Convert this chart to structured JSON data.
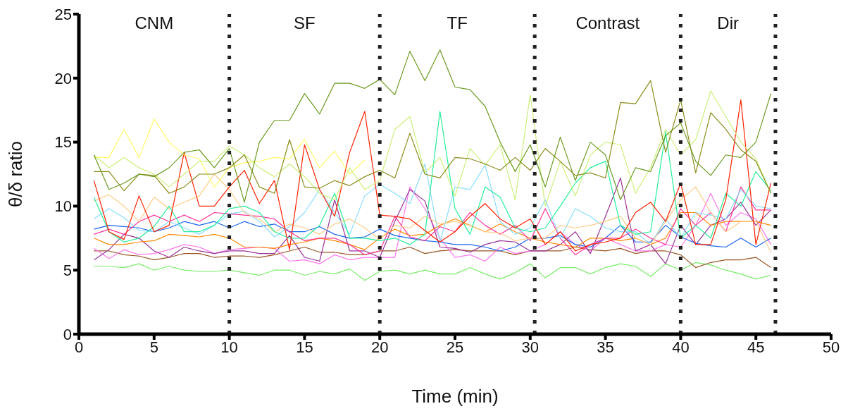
{
  "chart_data": {
    "type": "line",
    "xlabel": "Time (min)",
    "ylabel": "θ/δ ratio",
    "x": [
      1,
      2,
      3,
      4,
      5,
      6,
      7,
      8,
      9,
      10,
      11,
      12,
      13,
      14,
      15,
      16,
      17,
      18,
      19,
      20,
      21,
      22,
      23,
      24,
      25,
      26,
      27,
      28,
      29,
      30,
      31,
      32,
      33,
      34,
      35,
      36,
      37,
      38,
      39,
      40,
      41,
      42,
      43,
      44,
      45,
      46
    ],
    "xlim": [
      0,
      50
    ],
    "xticks": [
      0,
      5,
      10,
      15,
      20,
      25,
      30,
      35,
      40,
      45,
      50
    ],
    "ylim": [
      0,
      25
    ],
    "yticks": [
      0,
      5,
      10,
      15,
      20,
      25
    ],
    "grid": false,
    "legend": false,
    "marker": "none",
    "line_style": "solid",
    "ref_lines": [
      {
        "axis": "x",
        "value": 10,
        "color": "#222222",
        "line_style": "dotted"
      },
      {
        "axis": "x",
        "value": 20,
        "color": "#222222",
        "line_style": "dotted"
      },
      {
        "axis": "x",
        "value": 30.3,
        "color": "#222222",
        "line_style": "dotted"
      },
      {
        "axis": "x",
        "value": 40,
        "color": "#222222",
        "line_style": "dotted"
      },
      {
        "axis": "x",
        "value": 46.3,
        "color": "#222222",
        "line_style": "dotted"
      }
    ],
    "annotations": [
      "CNM",
      "SF",
      "TF",
      "Contrast",
      "Dir"
    ],
    "series": [
      {
        "color": "#77ee66",
        "values": [
          5.3,
          5.3,
          5.2,
          5.5,
          5,
          5.3,
          5,
          4.9,
          4.9,
          5,
          4.8,
          4.6,
          5,
          5,
          4.6,
          4.9,
          4.7,
          5.1,
          4.2,
          4.9,
          5,
          4.7,
          5,
          4.7,
          4.7,
          5.2,
          4.7,
          4.3,
          4.8,
          5.5,
          4.4,
          5.2,
          5.2,
          4.7,
          5.2,
          5.5,
          5.3,
          4.5,
          5.5,
          5,
          5.6,
          5.4,
          5,
          4.7,
          4.3,
          4.6
        ]
      },
      {
        "color": "#995522",
        "values": [
          6.5,
          6.5,
          6.2,
          6.1,
          5.8,
          6,
          6.3,
          6.3,
          6,
          6.1,
          6.1,
          6,
          6.2,
          6.5,
          6.8,
          6.4,
          6.4,
          6.2,
          6.2,
          6.5,
          6.5,
          6.8,
          6.3,
          6.5,
          6.6,
          6.5,
          6.5,
          6.5,
          6.2,
          6.5,
          6.5,
          6.5,
          6.8,
          6.6,
          6.5,
          6.7,
          6.3,
          6.5,
          6.5,
          6.2,
          5.2,
          5.6,
          5.8,
          5.8,
          6,
          5.2
        ]
      },
      {
        "color": "#ff77ee",
        "values": [
          6.7,
          5.9,
          6.6,
          6.2,
          6.3,
          6.6,
          7,
          6.8,
          6.3,
          6.6,
          6.7,
          6.8,
          6.7,
          5.7,
          5.8,
          5.5,
          6.2,
          5.8,
          6,
          6,
          6,
          11.5,
          9.8,
          7.5,
          6,
          6.2,
          5.7,
          6.8,
          6.3,
          6.5,
          7,
          8,
          7,
          6.5,
          7.5,
          7,
          6.5,
          6.5,
          7,
          6.8,
          8.5,
          11,
          8.5,
          9.5,
          9,
          7
        ]
      },
      {
        "color": "#993399",
        "values": [
          5.8,
          6.6,
          7.8,
          7.5,
          6.5,
          6,
          6.8,
          6.5,
          6.3,
          6.5,
          6.5,
          6.3,
          6.3,
          7.7,
          6,
          5.7,
          10.5,
          6.5,
          6.5,
          6,
          8.8,
          11.3,
          10.4,
          6.8,
          6.7,
          6.4,
          7,
          7.3,
          7.2,
          6.5,
          6.5,
          7,
          8,
          6.3,
          9.2,
          12.2,
          6.5,
          7,
          5.5,
          8.5,
          7,
          8.5,
          9,
          10.3,
          8.5,
          9.7
        ]
      },
      {
        "color": "#ff8800",
        "values": [
          7.5,
          7,
          7,
          7.2,
          7.3,
          7.8,
          7.7,
          7.6,
          7.8,
          7.5,
          6.8,
          6.8,
          6.7,
          7,
          7.2,
          7.5,
          7.3,
          7,
          6.6,
          7.5,
          8.2,
          7.7,
          7.8,
          8.5,
          9,
          8.5,
          8,
          8.6,
          8,
          7.5,
          7.2,
          7,
          6.8,
          7.5,
          7.5,
          7.3,
          7.5,
          7,
          7.5,
          9.5,
          9.5,
          8.5,
          8.8,
          8.8,
          8.8,
          8.5
        ]
      },
      {
        "color": "#1a66ee",
        "values": [
          8.2,
          8.5,
          8.4,
          8.3,
          8,
          8.3,
          8.8,
          8.5,
          8.8,
          8.3,
          8.8,
          8.4,
          8.6,
          8,
          8,
          8.4,
          7.8,
          7.5,
          7.6,
          8.2,
          7.7,
          7.5,
          7.3,
          7.2,
          7,
          7,
          6.8,
          6.5,
          6.8,
          7.5,
          7.5,
          7.7,
          7,
          6.8,
          7.5,
          8.5,
          7.2,
          7.2,
          8.5,
          7.6,
          7.1,
          6.9,
          6.8,
          7.5,
          6.8,
          7.5
        ]
      },
      {
        "color": "#ff3399",
        "values": [
          7.8,
          8.2,
          7.8,
          8.8,
          9.3,
          8.8,
          9.3,
          8.8,
          9.5,
          9.4,
          9.3,
          9.2,
          9,
          8,
          7.3,
          7.5,
          7.5,
          7,
          6.2,
          6.5,
          9.2,
          7.6,
          7.3,
          8.4,
          8,
          9.5,
          8.5,
          7.8,
          8.5,
          7.3,
          9.8,
          7.5,
          6.2,
          7,
          7.5,
          7.5,
          8.2,
          7.5,
          7,
          9.8,
          8.5,
          9.5,
          8,
          11.5,
          9.7,
          9.7
        ]
      },
      {
        "color": "#88ddff",
        "values": [
          9,
          9.8,
          9.1,
          8.1,
          8,
          8.8,
          8.3,
          7.8,
          8.5,
          9.4,
          9.6,
          8.8,
          7.6,
          8.4,
          9.5,
          11.3,
          9.5,
          7.8,
          10.8,
          11.7,
          11,
          10.2,
          13.3,
          7.2,
          11.5,
          11.3,
          13.2,
          8.8,
          7.8,
          8.3,
          10.5,
          7.5,
          9.8,
          9.2,
          8.3,
          8,
          8,
          7,
          9,
          7.5,
          9.5,
          9.3,
          9,
          11.3,
          10,
          9.8
        ]
      },
      {
        "color": "#ffcc88",
        "values": [
          10.4,
          10.9,
          10,
          8.8,
          10.7,
          9.8,
          10.3,
          10.8,
          12.5,
          11.3,
          9.5,
          9,
          8,
          8.6,
          8.3,
          7.8,
          8.6,
          9,
          8.3,
          7.4,
          8.5,
          8.3,
          9.2,
          8.6,
          8.8,
          8.5,
          8,
          7.9,
          7.3,
          7.5,
          7.5,
          8.5,
          8.3,
          8.5,
          8.8,
          9.2,
          7.5,
          7,
          8.8,
          10.5,
          11.5,
          9.5,
          8,
          8.8,
          8.8,
          6.4
        ]
      },
      {
        "color": "#22ee99",
        "values": [
          10.7,
          8,
          7.2,
          7.5,
          8.4,
          10,
          8,
          8,
          8.5,
          9.8,
          10,
          9.5,
          8,
          7.5,
          7.5,
          8.5,
          11,
          7.5,
          7.5,
          7.3,
          7.5,
          7,
          7.8,
          17.4,
          9.8,
          7.8,
          11.5,
          10.7,
          8.3,
          8,
          8.3,
          10,
          11.8,
          13,
          13.5,
          8.5,
          7.8,
          8,
          15.8,
          7.5,
          8.5,
          7.5,
          11,
          10,
          12.7,
          11.2
        ]
      },
      {
        "color": "#ff2200",
        "values": [
          12,
          8,
          7.4,
          10.8,
          8,
          8.5,
          14.2,
          10,
          10,
          11.5,
          12.8,
          10.2,
          12,
          6.6,
          14.8,
          11.3,
          9.2,
          14.2,
          17.4,
          9.3,
          9.2,
          9,
          8.1,
          7.2,
          8,
          9.2,
          10.2,
          9,
          8.3,
          9,
          7,
          8,
          6.5,
          7,
          7.2,
          7.5,
          9.5,
          10.3,
          8.8,
          11.8,
          7,
          7,
          10.5,
          18.3,
          7,
          11.8
        ]
      },
      {
        "color": "#ffff66",
        "values": [
          13.8,
          13.8,
          16,
          13.8,
          16.8,
          15,
          14,
          13.7,
          11.5,
          13,
          13.4,
          13.5,
          13.8,
          13.7,
          15.2,
          13,
          14.3,
          12.5,
          13.6,
          null,
          null,
          null,
          null,
          null,
          null,
          null,
          null,
          null,
          null,
          null,
          null,
          null,
          null,
          null,
          null,
          null,
          null,
          null,
          null,
          null,
          null,
          null,
          null,
          null,
          null,
          null
        ]
      },
      {
        "color": "#ccf07a",
        "values": [
          14,
          13,
          13.8,
          13,
          12.5,
          11.5,
          12.5,
          13.5,
          13.5,
          14.7,
          14,
          13,
          12.3,
          13.3,
          12.3,
          11,
          10.5,
          13,
          11.3,
          12,
          16,
          17,
          12.6,
          13.8,
          10.8,
          14.5,
          13.2,
          14.8,
          10.5,
          18.7,
          10,
          13.5,
          10.8,
          14,
          15,
          14.8,
          11,
          13,
          16,
          14,
          15.2,
          19,
          17,
          15,
          13.7,
          11
        ]
      },
      {
        "color": "#8c8c1a",
        "values": [
          12.7,
          12.7,
          11.2,
          12.5,
          12.4,
          11,
          11.5,
          12.5,
          12.5,
          13,
          14,
          11.5,
          11,
          15.2,
          11.5,
          11.4,
          12,
          11.6,
          12.3,
          12.8,
          12.2,
          15.7,
          12.5,
          12.2,
          13.8,
          13.7,
          13.3,
          12.8,
          13.8,
          12.8,
          14.5,
          13.5,
          12.4,
          12.6,
          12.2,
          18.1,
          18,
          19.8,
          14.2,
          18.3,
          12.6,
          17.3,
          16,
          14.4,
          13.5,
          11
        ]
      },
      {
        "color": "#6a9a1f",
        "values": [
          14,
          11.3,
          11.8,
          12.5,
          12.3,
          13,
          14.2,
          14.4,
          13,
          14.5,
          10.3,
          15,
          16.7,
          16.7,
          18.8,
          17.2,
          19.6,
          19.6,
          19.2,
          19.9,
          18.7,
          22.1,
          19.8,
          22.2,
          19.3,
          19.1,
          17.8,
          15,
          12.7,
          14.8,
          11.5,
          15.4,
          12,
          15,
          14,
          10.5,
          13,
          12.7,
          15.5,
          16.5,
          13.5,
          12.4,
          14,
          13.8,
          15,
          18.8
        ]
      }
    ]
  }
}
